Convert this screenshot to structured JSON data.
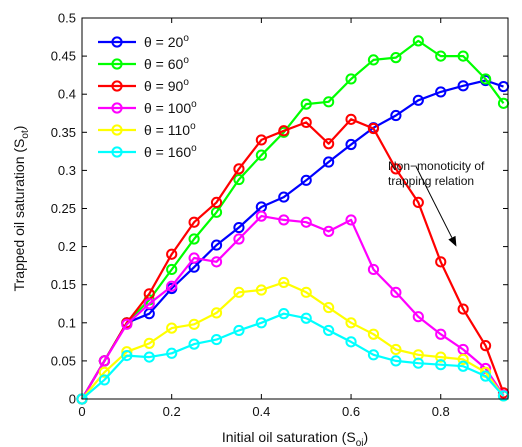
{
  "chart_data": {
    "type": "line",
    "xlabel": "Initial oil saturation (S",
    "xlabel_sub": "oi",
    "xlabel_close": ")",
    "ylabel": "Trapped oil saturation (S",
    "ylabel_sub": "ot",
    "ylabel_close": ")",
    "xlim": [
      0,
      0.95
    ],
    "ylim": [
      0,
      0.5
    ],
    "xticks": [
      0,
      0.2,
      0.4,
      0.6,
      0.8
    ],
    "xtick_labels": [
      "0",
      "0.2",
      "0.4",
      "0.6",
      "0.8"
    ],
    "yticks": [
      0,
      0.05,
      0.1,
      0.15,
      0.2,
      0.25,
      0.3,
      0.35,
      0.4,
      0.45,
      0.5
    ],
    "ytick_labels": [
      "0",
      "0.05",
      "0.1",
      "0.15",
      "0.2",
      "0.25",
      "0.3",
      "0.35",
      "0.4",
      "0.45",
      "0.5"
    ],
    "grid": false,
    "legend_position": "top-left",
    "annotation": {
      "line1": "Non−monoticity of",
      "line2": "trapping relation",
      "arrow_from": [
        0.745,
        0.305
      ],
      "arrow_to": [
        0.835,
        0.2
      ]
    },
    "series": [
      {
        "name": "θ = 20",
        "superscript": "o",
        "color": "#0000ff",
        "x": [
          0,
          0.05,
          0.1,
          0.15,
          0.2,
          0.25,
          0.3,
          0.35,
          0.4,
          0.45,
          0.5,
          0.55,
          0.6,
          0.65,
          0.7,
          0.75,
          0.8,
          0.85,
          0.9,
          0.94
        ],
        "y": [
          0,
          0.05,
          0.1,
          0.112,
          0.145,
          0.173,
          0.202,
          0.225,
          0.252,
          0.265,
          0.287,
          0.311,
          0.334,
          0.356,
          0.372,
          0.392,
          0.403,
          0.411,
          0.418,
          0.41
        ]
      },
      {
        "name": "θ = 60",
        "superscript": "o",
        "color": "#00ff00",
        "x": [
          0,
          0.05,
          0.1,
          0.15,
          0.2,
          0.25,
          0.3,
          0.35,
          0.4,
          0.45,
          0.5,
          0.55,
          0.6,
          0.65,
          0.7,
          0.75,
          0.8,
          0.85,
          0.9,
          0.94
        ],
        "y": [
          0,
          0.05,
          0.1,
          0.13,
          0.17,
          0.21,
          0.245,
          0.288,
          0.32,
          0.35,
          0.387,
          0.39,
          0.42,
          0.445,
          0.448,
          0.47,
          0.45,
          0.45,
          0.42,
          0.388
        ]
      },
      {
        "name": "θ = 90",
        "superscript": "o",
        "color": "#ff0000",
        "x": [
          0,
          0.05,
          0.1,
          0.15,
          0.2,
          0.25,
          0.3,
          0.35,
          0.4,
          0.45,
          0.5,
          0.55,
          0.6,
          0.65,
          0.7,
          0.75,
          0.8,
          0.85,
          0.9,
          0.94
        ],
        "y": [
          0,
          0.05,
          0.1,
          0.138,
          0.19,
          0.232,
          0.258,
          0.302,
          0.34,
          0.352,
          0.363,
          0.335,
          0.367,
          0.355,
          0.302,
          0.258,
          0.18,
          0.118,
          0.07,
          0.008
        ]
      },
      {
        "name": "θ = 100",
        "superscript": "o",
        "color": "#ff00ff",
        "x": [
          0,
          0.05,
          0.1,
          0.15,
          0.2,
          0.25,
          0.3,
          0.35,
          0.4,
          0.45,
          0.5,
          0.55,
          0.6,
          0.65,
          0.7,
          0.75,
          0.8,
          0.85,
          0.9,
          0.94
        ],
        "y": [
          0,
          0.05,
          0.098,
          0.125,
          0.148,
          0.185,
          0.18,
          0.21,
          0.24,
          0.235,
          0.232,
          0.22,
          0.235,
          0.17,
          0.14,
          0.108,
          0.085,
          0.065,
          0.04,
          0.005
        ]
      },
      {
        "name": "θ = 110",
        "superscript": "o",
        "color": "#ffff00",
        "x": [
          0,
          0.05,
          0.1,
          0.15,
          0.2,
          0.25,
          0.3,
          0.35,
          0.4,
          0.45,
          0.5,
          0.55,
          0.6,
          0.65,
          0.7,
          0.75,
          0.8,
          0.85,
          0.9,
          0.94
        ],
        "y": [
          0,
          0.035,
          0.062,
          0.073,
          0.093,
          0.098,
          0.113,
          0.14,
          0.143,
          0.153,
          0.14,
          0.12,
          0.1,
          0.085,
          0.065,
          0.058,
          0.055,
          0.052,
          0.035,
          0.004
        ]
      },
      {
        "name": "θ = 160",
        "superscript": "o",
        "color": "#00ffff",
        "x": [
          0,
          0.05,
          0.1,
          0.15,
          0.2,
          0.25,
          0.3,
          0.35,
          0.4,
          0.45,
          0.5,
          0.55,
          0.6,
          0.65,
          0.7,
          0.75,
          0.8,
          0.85,
          0.9,
          0.94
        ],
        "y": [
          0,
          0.025,
          0.057,
          0.055,
          0.06,
          0.072,
          0.078,
          0.09,
          0.1,
          0.112,
          0.106,
          0.09,
          0.075,
          0.058,
          0.05,
          0.047,
          0.045,
          0.043,
          0.03,
          0.004
        ]
      }
    ]
  }
}
